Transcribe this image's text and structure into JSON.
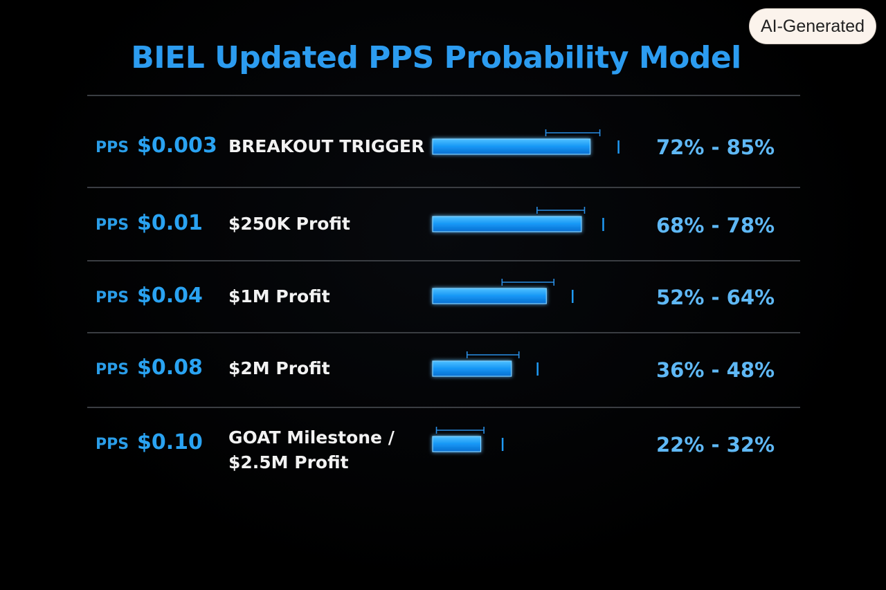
{
  "badge": "AI-Generated",
  "chart_data": {
    "type": "bar",
    "title": "BIEL Updated PPS Probability Model",
    "xlim": [
      0,
      100
    ],
    "rows": [
      {
        "prefix": "PPS",
        "price": "$0.003",
        "label_lines": [
          "BREAKOUT TRIGGER"
        ],
        "low": 72,
        "high": 85,
        "range_text": "72% - 85%"
      },
      {
        "prefix": "PPS",
        "price": "$0.01",
        "label_lines": [
          "$250K Profit"
        ],
        "low": 68,
        "high": 78,
        "range_text": "68% - 78%"
      },
      {
        "prefix": "PPS",
        "price": "$0.04",
        "label_lines": [
          "$1M Profit"
        ],
        "low": 52,
        "high": 64,
        "range_text": "52% - 64%"
      },
      {
        "prefix": "PPS",
        "price": "$0.08",
        "label_lines": [
          "$2M Profit"
        ],
        "low": 36,
        "high": 48,
        "range_text": "36% - 48%"
      },
      {
        "prefix": "PPS",
        "price": "$0.10",
        "label_lines": [
          "GOAT Milestone /",
          "$2.5M Profit"
        ],
        "low": 22,
        "high": 32,
        "range_text": "22% - 32%"
      }
    ]
  },
  "colors": {
    "title": "#2c9cf0",
    "bar_fill": "#1596f5",
    "bar_edge": "#7fd0ff",
    "whisker": "#2a8fe6",
    "range_text": "#5fb8f5"
  }
}
